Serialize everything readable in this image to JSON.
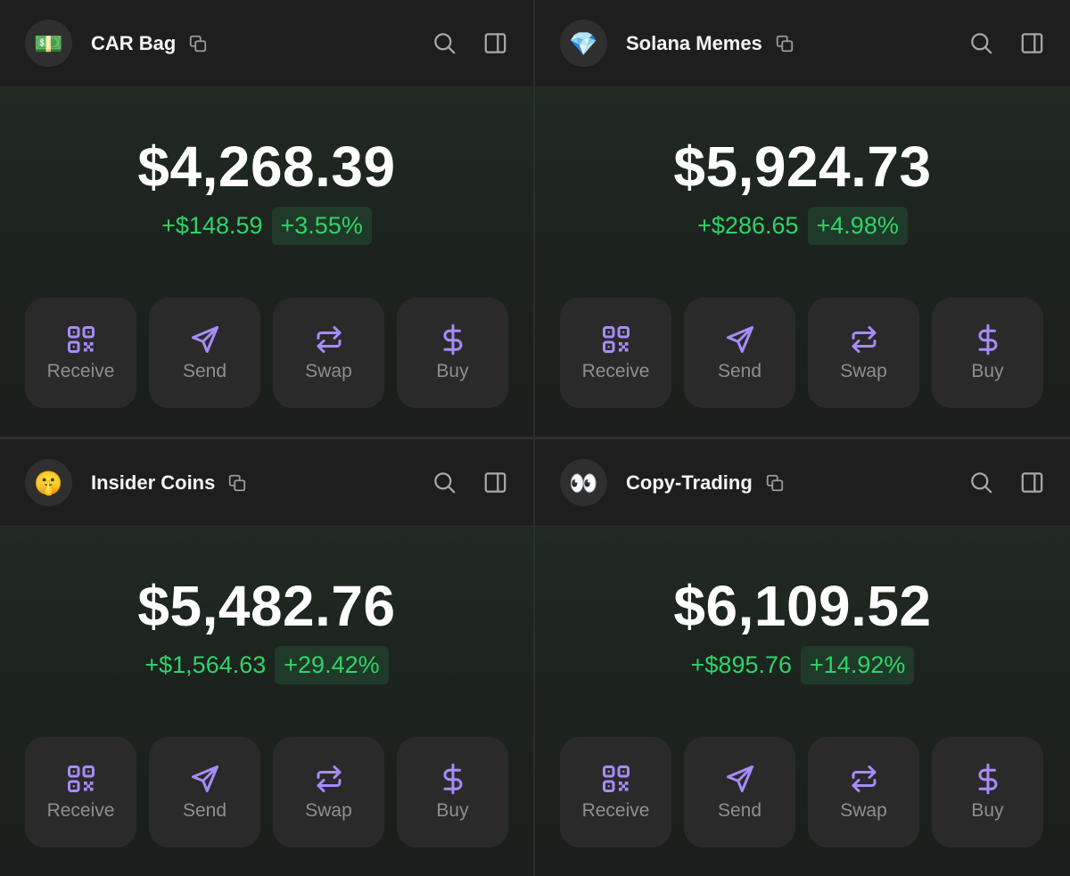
{
  "colors": {
    "accent": "#a78bfa",
    "positive": "#2fd36a",
    "positive_bg": "#1f3a28",
    "panel_bg": "#1e1e1e",
    "button_bg": "#2a2a2a"
  },
  "wallets": [
    {
      "avatar_icon": "money-bill-emoji",
      "avatar_glyph": "💵",
      "name": "CAR Bag",
      "balance": "$4,268.39",
      "change_abs": "+$148.59",
      "change_pct": "+3.55%"
    },
    {
      "avatar_icon": "gem-emoji",
      "avatar_glyph": "💎",
      "name": "Solana Memes",
      "balance": "$5,924.73",
      "change_abs": "+$286.65",
      "change_pct": "+4.98%"
    },
    {
      "avatar_icon": "shushing-face-emoji",
      "avatar_glyph": "🤫",
      "name": "Insider Coins",
      "balance": "$5,482.76",
      "change_abs": "+$1,564.63",
      "change_pct": "+29.42%"
    },
    {
      "avatar_icon": "eyes-emoji",
      "avatar_glyph": "👀",
      "name": "Copy-Trading",
      "balance": "$6,109.52",
      "change_abs": "+$895.76",
      "change_pct": "+14.92%"
    }
  ],
  "actions": {
    "receive": "Receive",
    "send": "Send",
    "swap": "Swap",
    "buy": "Buy"
  },
  "icons": {
    "copy": "copy-icon",
    "search": "search-icon",
    "sidebar": "sidebar-panel-icon",
    "receive": "qr-code-icon",
    "send": "paper-plane-icon",
    "swap": "swap-arrows-icon",
    "buy": "dollar-icon"
  }
}
